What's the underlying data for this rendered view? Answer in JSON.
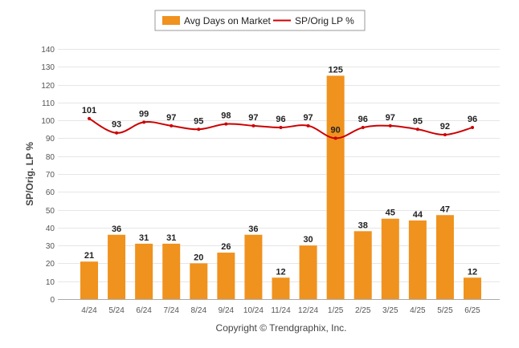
{
  "chart_data": {
    "type": "bar",
    "categories": [
      "4/24",
      "5/24",
      "6/24",
      "7/24",
      "8/24",
      "9/24",
      "10/24",
      "11/24",
      "12/24",
      "1/25",
      "2/25",
      "3/25",
      "4/25",
      "5/25",
      "6/25"
    ],
    "series": [
      {
        "name": "Avg Days on Market",
        "type": "bar",
        "color": "#f0921e",
        "values": [
          21,
          36,
          31,
          31,
          20,
          26,
          36,
          12,
          30,
          125,
          38,
          45,
          44,
          47,
          12
        ]
      },
      {
        "name": "SP/Orig LP %",
        "type": "line",
        "color": "#cc0000",
        "values": [
          101,
          93,
          99,
          97,
          95,
          98,
          97,
          96,
          97,
          90,
          96,
          97,
          95,
          92,
          96
        ]
      }
    ],
    "ylabel": "SP/Orig. LP %",
    "xlabel": "",
    "ylim": [
      0,
      140
    ],
    "yticks": [
      0,
      10,
      20,
      30,
      40,
      50,
      60,
      70,
      80,
      90,
      100,
      110,
      120,
      130,
      140
    ],
    "grid": true,
    "legend_position": "top-center"
  },
  "footer": {
    "copyright": "Copyright © Trendgraphix, Inc."
  }
}
